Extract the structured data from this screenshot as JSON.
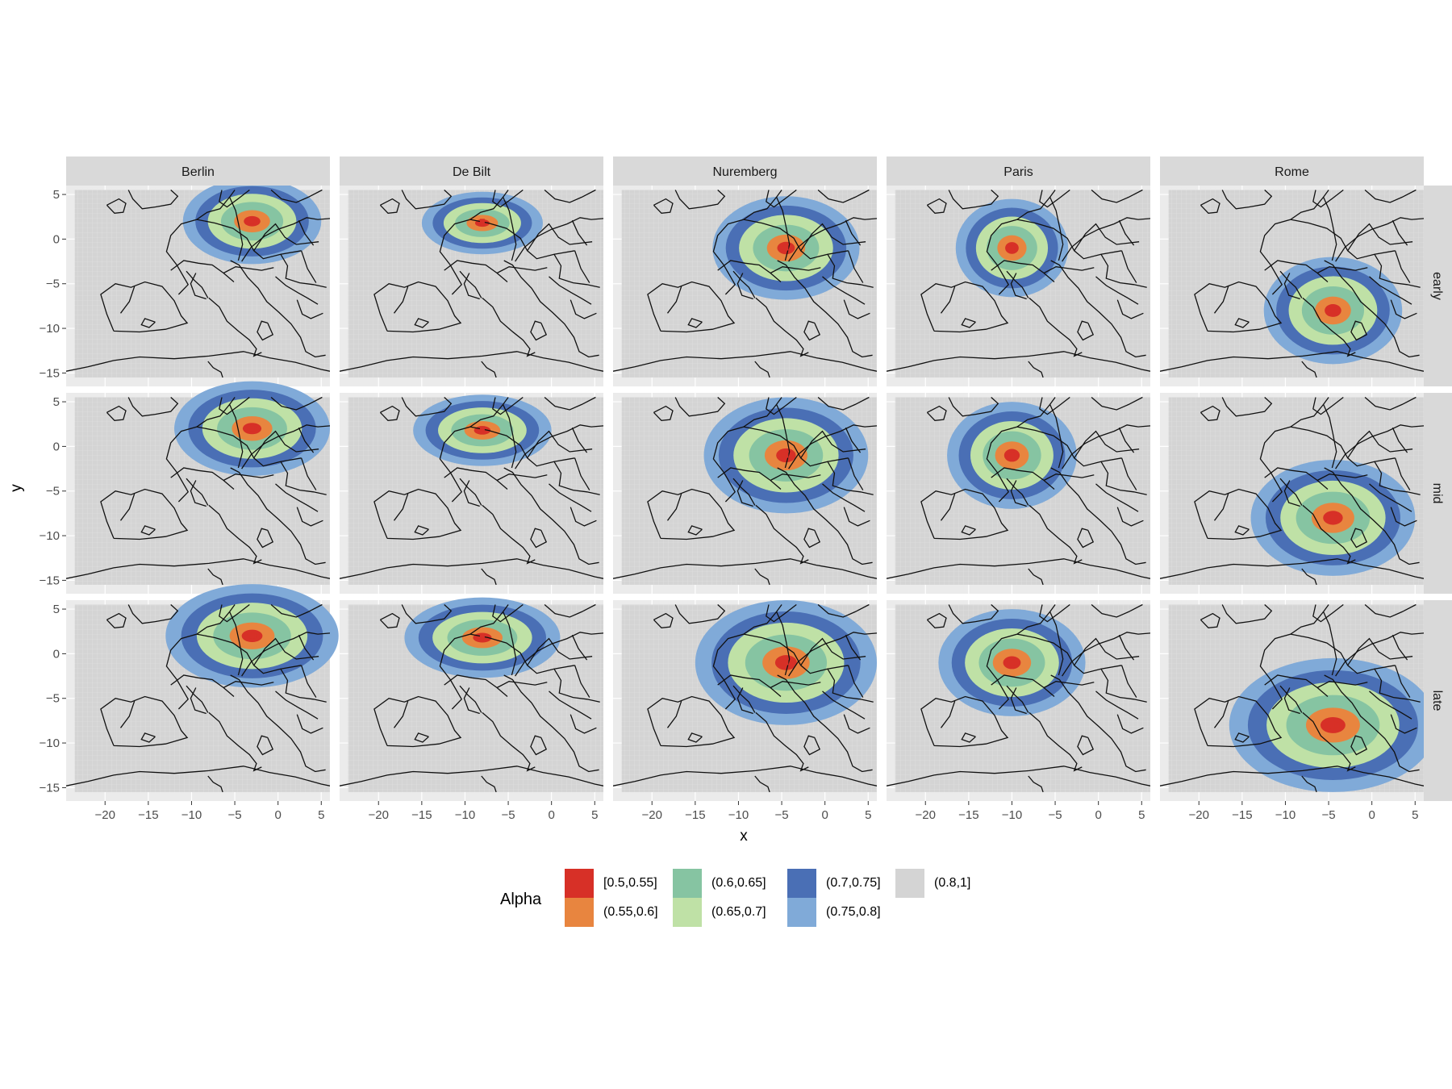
{
  "chart_data": {
    "type": "heatmap",
    "xlabel": "x",
    "ylabel": "y",
    "xlim": [
      -24.5,
      6
    ],
    "ylim": [
      -16.5,
      6
    ],
    "x_ticks": [
      -20,
      -15,
      -10,
      -5,
      0,
      5
    ],
    "y_ticks": [
      5,
      0,
      -5,
      -10,
      -15
    ],
    "x_tick_labels": [
      "−20",
      "−15",
      "−10",
      "−5",
      "0",
      "5"
    ],
    "y_tick_labels": [
      "5",
      "0",
      "−5",
      "−10",
      "−15"
    ],
    "columns": [
      "Berlin",
      "De Bilt",
      "Nuremberg",
      "Paris",
      "Rome"
    ],
    "rows": [
      "early",
      "mid",
      "late"
    ],
    "station_xy": {
      "Berlin": [
        -3,
        2
      ],
      "De Bilt": [
        -8,
        2
      ],
      "Nuremberg": [
        -4.5,
        -1
      ],
      "Paris": [
        -10,
        -1
      ],
      "Rome": [
        -4,
        -8
      ]
    },
    "legend": {
      "title": "Alpha",
      "placement": "bottom",
      "items": [
        {
          "label": "[0.5,0.55]",
          "color": "#d73027"
        },
        {
          "label": "(0.55,0.6]",
          "color": "#e8853f"
        },
        {
          "label": "(0.6,0.65]",
          "color": "#86c4a2"
        },
        {
          "label": "(0.65,0.7]",
          "color": "#bfe1a6"
        },
        {
          "label": "(0.7,0.75]",
          "color": "#4a6fb5"
        },
        {
          "label": "(0.75,0.8]",
          "color": "#80aad8"
        },
        {
          "label": "(0.8,1]",
          "color": "#d4d4d4"
        }
      ]
    },
    "regions": {
      "Berlin": [
        {
          "cx": -3,
          "cy": 2,
          "rx": [
            8,
            9,
            10
          ],
          "ry": [
            4.8,
            5.3,
            5.8
          ]
        }
      ],
      "De Bilt": [
        {
          "cx": -8,
          "cy": 1.8,
          "rx": [
            7,
            8,
            9
          ],
          "ry": [
            3.5,
            4,
            4.5
          ]
        }
      ],
      "Nuremberg": [
        {
          "cx": -4.5,
          "cy": -1,
          "rx": [
            8.5,
            9.5,
            10.5
          ],
          "ry": [
            5.8,
            6.5,
            7
          ]
        }
      ],
      "Paris": [
        {
          "cx": -10,
          "cy": -1,
          "rx": [
            6.5,
            7.5,
            8.5
          ],
          "ry": [
            5.5,
            6,
            6
          ]
        }
      ],
      "Rome": [
        {
          "cx": -4.5,
          "cy": -8,
          "rx": [
            8,
            9.5,
            12
          ],
          "ry": [
            6,
            6.5,
            7.5
          ]
        }
      ]
    },
    "grid": true
  }
}
